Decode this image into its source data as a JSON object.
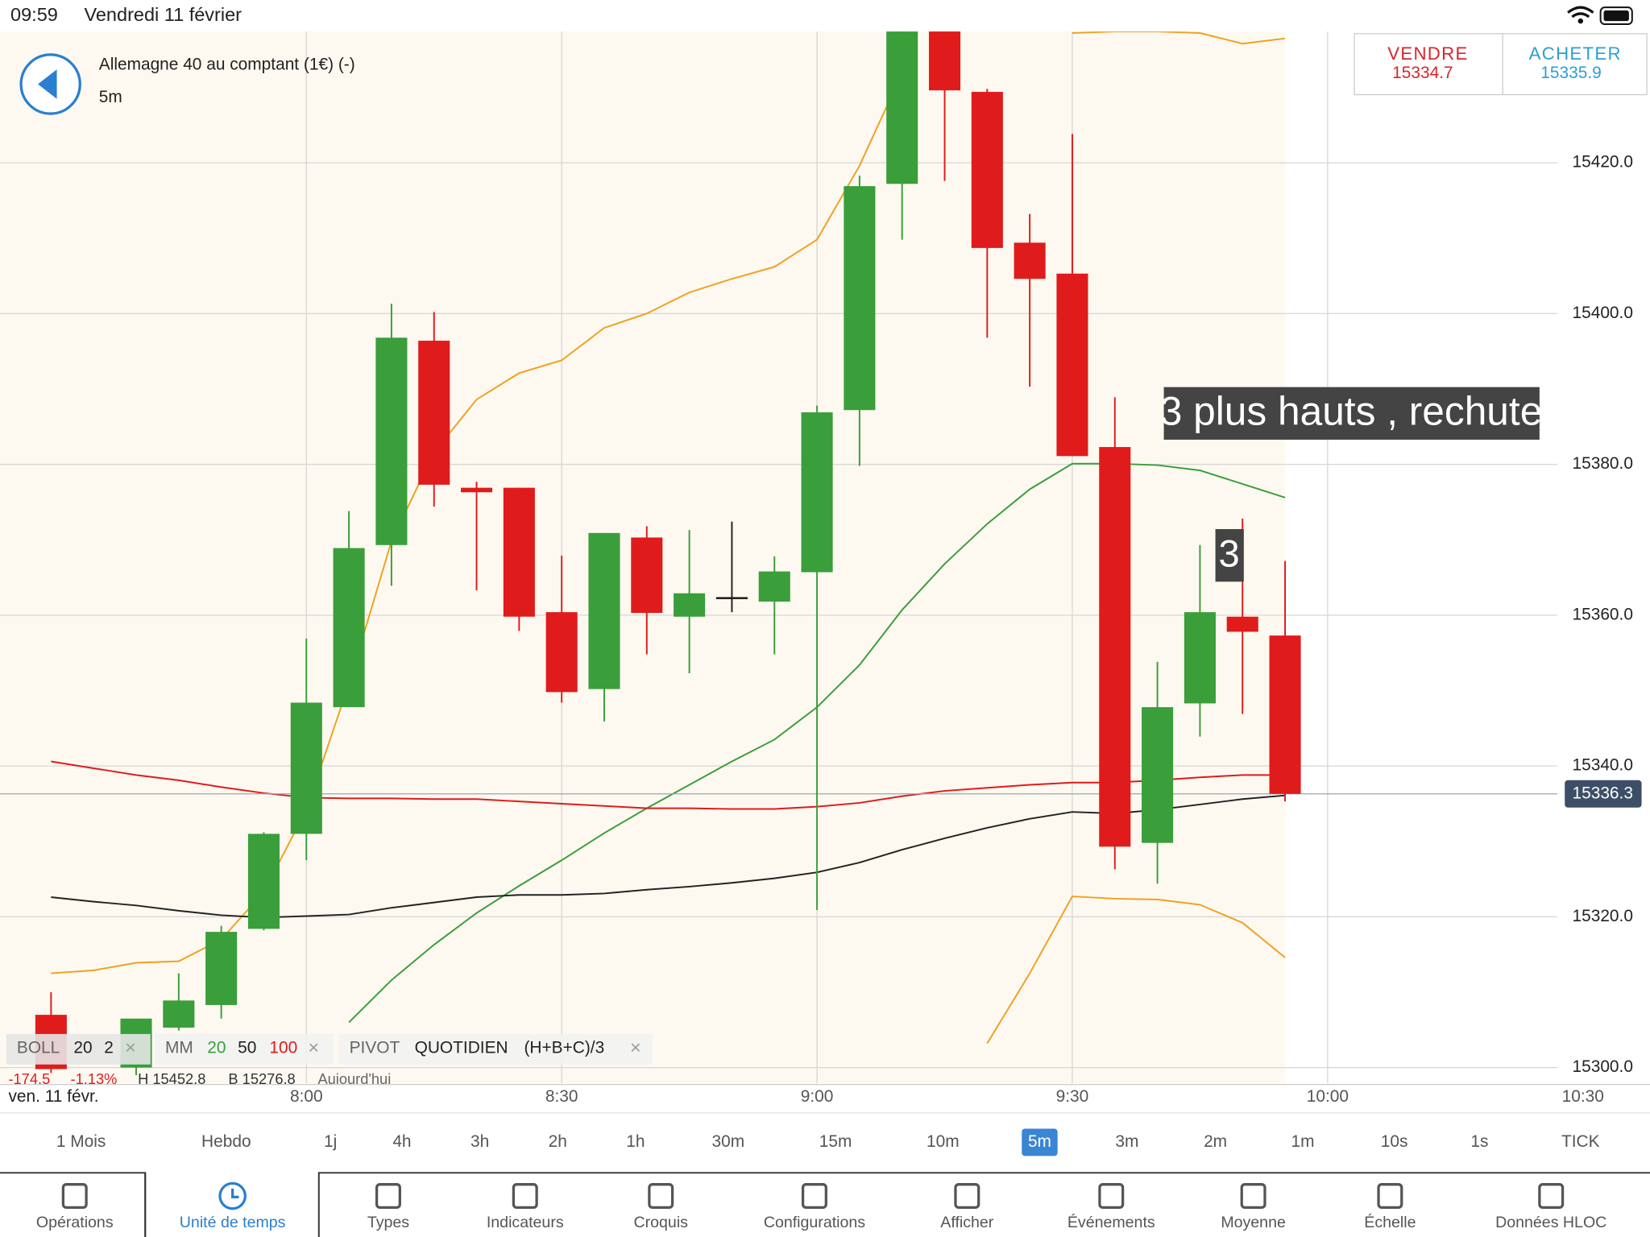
{
  "status_bar": {
    "time": "09:59",
    "date": "Vendredi 11 février"
  },
  "header": {
    "instrument": "Allemagne 40 au comptant (1€) (-)",
    "timeframe": "5m",
    "sell_label": "VENDRE",
    "sell_price": 15334.7,
    "buy_label": "ACHETER",
    "buy_price": 15335.9
  },
  "chart_data": {
    "type": "candlestick",
    "x": [
      450,
      455,
      460,
      465,
      470,
      475,
      480,
      485,
      490,
      495,
      500,
      505,
      510,
      515,
      520,
      525,
      530,
      535,
      540,
      545,
      550,
      555,
      560,
      565,
      570,
      575,
      580,
      585,
      590,
      595
    ],
    "open": [
      15307.0,
      null,
      15300.0,
      15305.3,
      15308.3,
      15318.4,
      15331.0,
      15347.8,
      15369.3,
      15396.4,
      15376.9,
      15376.9,
      15360.4,
      15350.2,
      15370.3,
      15359.8,
      15362.4,
      15361.8,
      15365.7,
      15387.2,
      15417.2,
      15440.0,
      15429.4,
      15409.4,
      15405.3,
      15382.3,
      15329.8,
      15348.3,
      15359.8,
      15357.3
    ],
    "high": [
      15310.0,
      null,
      15306.5,
      15312.5,
      15318.8,
      15331.2,
      15356.9,
      15373.8,
      15401.3,
      15400.2,
      15377.7,
      15376.9,
      15367.9,
      15370.9,
      15371.8,
      15371.3,
      15372.4,
      15367.8,
      15387.8,
      15418.3,
      15438.0,
      15440.0,
      15429.8,
      15413.2,
      15423.8,
      15388.9,
      15353.8,
      15369.3,
      15372.8,
      15367.2
    ],
    "low": [
      15299.3,
      null,
      15299.0,
      15304.9,
      15306.5,
      15318.2,
      15327.5,
      15347.8,
      15363.9,
      15374.4,
      15363.3,
      15357.9,
      15348.4,
      15345.9,
      15354.8,
      15352.3,
      15360.4,
      15354.8,
      15320.9,
      15379.8,
      15409.8,
      15417.6,
      15396.8,
      15390.3,
      15381.1,
      15326.3,
      15324.4,
      15343.9,
      15346.9,
      15335.3
    ],
    "close": [
      15299.8,
      null,
      15306.5,
      15308.9,
      15318.0,
      15331.0,
      15348.4,
      15368.9,
      15396.8,
      15377.3,
      15376.3,
      15359.8,
      15349.8,
      15370.9,
      15360.3,
      15362.9,
      15362.4,
      15365.8,
      15386.9,
      15416.9,
      15438.0,
      15429.6,
      15408.7,
      15404.6,
      15381.1,
      15329.3,
      15347.8,
      15360.4,
      15357.8,
      15336.3
    ],
    "up_color": "#3a9e3a",
    "down_color": "#e01b1b",
    "flat_color": "#222222",
    "xlim": [
      444,
      627
    ],
    "xticks": [
      {
        "value": 480,
        "label": "8:00"
      },
      {
        "value": 510,
        "label": "8:30"
      },
      {
        "value": 540,
        "label": "9:00"
      },
      {
        "value": 570,
        "label": "9:30"
      },
      {
        "value": 600,
        "label": "10:00"
      },
      {
        "value": 630,
        "label": "10:30"
      }
    ],
    "ylim": [
      15297.9,
      15437.4
    ],
    "yticks": [
      {
        "value": 15300,
        "label": "15300.0"
      },
      {
        "value": 15320,
        "label": "15320.0"
      },
      {
        "value": 15340,
        "label": "15340.0"
      },
      {
        "value": 15360,
        "label": "15360.0"
      },
      {
        "value": 15380,
        "label": "15380.0"
      },
      {
        "value": 15400,
        "label": "15400.0"
      },
      {
        "value": 15420,
        "label": "15420.0"
      }
    ],
    "grid": true,
    "last_price": 15336.3,
    "date_label": "ven. 11 févr.",
    "annotations": [
      "3 plus hauts , rechute",
      "3"
    ],
    "indicators": {
      "boll": {
        "label": "BOLL",
        "params": [
          20,
          2
        ],
        "color": "#f0a020",
        "upper": [
          15312.5,
          15312.9,
          15313.9,
          15314.1,
          15317.0,
          15323.3,
          15334.2,
          15350.9,
          15369.8,
          15381.6,
          15388.6,
          15392.1,
          15393.8,
          15398.1,
          15400.0,
          15402.8,
          15404.6,
          15406.2,
          15409.8,
          15419.6,
          15431.9,
          null,
          null,
          null,
          15437.2,
          15437.4,
          15437.4,
          15437.2,
          15435.8,
          15436.5
        ],
        "lower": [
          null,
          null,
          null,
          null,
          null,
          null,
          null,
          null,
          null,
          null,
          null,
          null,
          null,
          null,
          null,
          null,
          null,
          null,
          null,
          null,
          null,
          null,
          15303.2,
          15312.5,
          15322.7,
          15322.4,
          15322.3,
          15321.6,
          15319.2,
          15314.6
        ]
      },
      "mm": {
        "label": "MM",
        "series": [
          {
            "name": 20,
            "color": "#3a9e3a",
            "values": [
              null,
              null,
              null,
              null,
              null,
              null,
              null,
              15306.0,
              15311.6,
              15316.3,
              15320.5,
              15324.1,
              15327.5,
              15331.1,
              15334.4,
              15337.5,
              15340.6,
              15343.5,
              15347.8,
              15353.4,
              15360.7,
              15366.8,
              15372.1,
              15376.7,
              15380.1,
              15380.1,
              15379.9,
              15379.2,
              15377.4,
              15375.6
            ]
          },
          {
            "name": 50,
            "color": "#222222",
            "values": [
              15322.6,
              15322.0,
              15321.5,
              15320.8,
              15320.2,
              15319.9,
              15320.1,
              15320.3,
              15321.2,
              15321.9,
              15322.6,
              15322.9,
              15322.9,
              15323.1,
              15323.6,
              15324.0,
              15324.5,
              15325.1,
              15325.9,
              15327.2,
              15328.9,
              15330.4,
              15331.8,
              15333.0,
              15333.9,
              15333.7,
              15334.2,
              15334.9,
              15335.6,
              15336.1
            ]
          },
          {
            "name": 100,
            "color": "#e01b1b",
            "values": [
              15340.6,
              15339.7,
              15338.8,
              15338.1,
              15337.2,
              15336.4,
              15335.8,
              15335.7,
              15335.7,
              15335.6,
              15335.6,
              15335.3,
              15335.0,
              15334.7,
              15334.4,
              15334.4,
              15334.3,
              15334.3,
              15334.6,
              15335.1,
              15336.0,
              15336.7,
              15337.1,
              15337.5,
              15337.8,
              15337.8,
              15338.1,
              15338.5,
              15338.8,
              15338.8
            ]
          }
        ]
      },
      "pivot": {
        "label": "PIVOT",
        "params": [
          "QUOTIDIEN",
          "(H+B+C)/3"
        ]
      }
    },
    "day_stats": [
      "-174.5",
      "-1.13%",
      "H 15452.8",
      "B 15276.8",
      "Aujourd'hui"
    ]
  },
  "timeframes": {
    "items": [
      "1 Mois",
      "Hebdo",
      "1j",
      "4h",
      "3h",
      "2h",
      "1h",
      "30m",
      "15m",
      "10m",
      "5m",
      "3m",
      "2m",
      "1m",
      "10s",
      "1s",
      "TICK"
    ],
    "selected": 10
  },
  "toolbar": {
    "items": [
      "Opérations",
      "Unité de temps",
      "Types",
      "Indicateurs",
      "Croquis",
      "Configurations",
      "Afficher",
      "Événements",
      "Moyenne",
      "Échelle",
      "Données HLOC"
    ],
    "selected": 1
  }
}
